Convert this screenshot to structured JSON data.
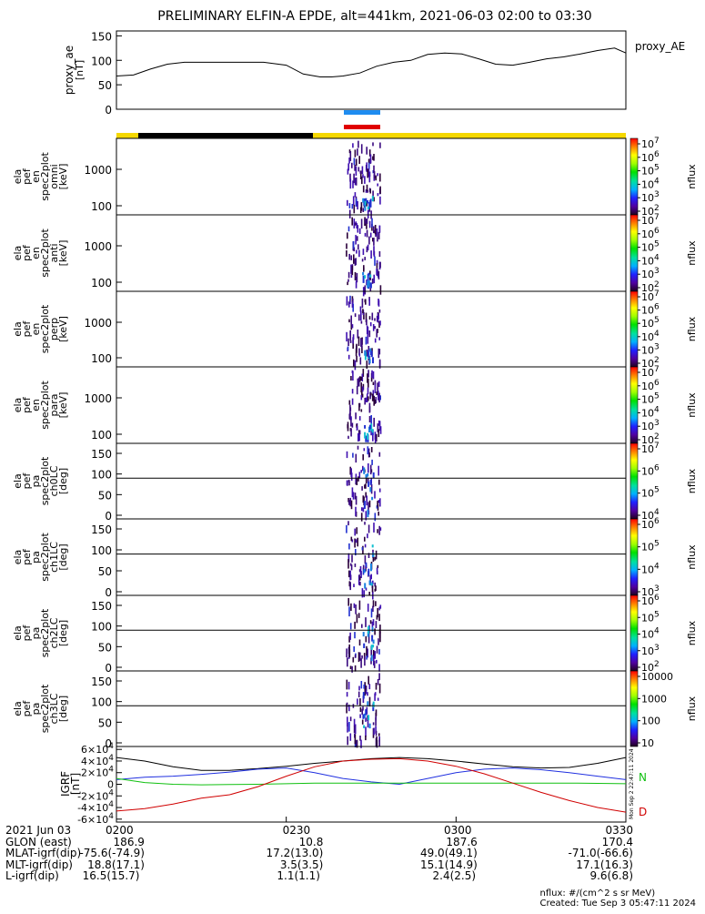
{
  "title": "PRELIMINARY ELFIN-A EPDE, alt=441km, 2021-06-03 02:00 to 03:30",
  "colors": {
    "yellow": "#f5d800",
    "black": "#000000",
    "blue_bar": "#1e8cf0",
    "red_bar": "#e00000",
    "series_black": "#000000",
    "series_blue": "#2030e0",
    "series_green": "#10c010",
    "series_red": "#d00000"
  },
  "time_axis": {
    "start": "0200",
    "end": "0330",
    "ticks": [
      "0200",
      "0230",
      "0300",
      "0330"
    ]
  },
  "chart_data": [
    {
      "type": "line",
      "name": "proxy_ae",
      "legend": "proxy_AE",
      "ylabel_lines": [
        "proxy_ae",
        "[nT]"
      ],
      "ylim": [
        0,
        160
      ],
      "yticks": [
        "0",
        "50",
        "100",
        "150"
      ],
      "x_minutes": [
        0,
        3,
        6,
        9,
        12,
        15,
        18,
        22,
        26,
        30,
        33,
        36,
        38,
        40,
        43,
        46,
        49,
        52,
        55,
        58,
        61,
        64,
        67,
        70,
        73,
        76,
        79,
        82,
        85,
        88,
        90
      ],
      "values": [
        68,
        70,
        82,
        92,
        96,
        96,
        96,
        96,
        96,
        90,
        72,
        66,
        66,
        68,
        74,
        88,
        96,
        100,
        112,
        115,
        113,
        103,
        92,
        90,
        96,
        103,
        107,
        113,
        120,
        125,
        115
      ]
    },
    {
      "type": "heatmap",
      "name": "ela_pef_en_spec2plot_omni",
      "ylabel_lines": [
        "ela",
        "pef",
        "en",
        "spec2plot",
        "omni",
        "[keV]"
      ],
      "yticks": [
        "100",
        "1000"
      ],
      "colorbar": {
        "label": "nflux",
        "ticks": [
          "10^2",
          "10^3",
          "10^4",
          "10^5",
          "10^6",
          "10^7"
        ]
      }
    },
    {
      "type": "heatmap",
      "name": "ela_pef_en_spec2plot_anti",
      "ylabel_lines": [
        "ela",
        "pef",
        "en",
        "spec2plot",
        "anti",
        "[keV]"
      ],
      "yticks": [
        "100",
        "1000"
      ],
      "colorbar": {
        "label": "nflux",
        "ticks": [
          "10^2",
          "10^3",
          "10^4",
          "10^5",
          "10^6",
          "10^7"
        ]
      }
    },
    {
      "type": "heatmap",
      "name": "ela_pef_en_spec2plot_perp",
      "ylabel_lines": [
        "ela",
        "pef",
        "en",
        "spec2plot",
        "perp",
        "[keV]"
      ],
      "yticks": [
        "100",
        "1000"
      ],
      "colorbar": {
        "label": "nflux",
        "ticks": [
          "10^2",
          "10^3",
          "10^4",
          "10^5",
          "10^6",
          "10^7"
        ]
      }
    },
    {
      "type": "heatmap",
      "name": "ela_pef_en_spec2plot_para",
      "ylabel_lines": [
        "ela",
        "pef",
        "en",
        "spec2plot",
        "para",
        "[keV]"
      ],
      "yticks": [
        "100",
        "1000"
      ],
      "colorbar": {
        "label": "nflux",
        "ticks": [
          "10^2",
          "10^3",
          "10^4",
          "10^5",
          "10^6",
          "10^7"
        ]
      }
    },
    {
      "type": "heatmap",
      "name": "ela_pef_pa_spec2plot_ch0LC",
      "ylabel_lines": [
        "ela",
        "pef",
        "pa",
        "spec2plot",
        "ch0LC",
        "[deg]"
      ],
      "yticks": [
        "0",
        "50",
        "100",
        "150"
      ],
      "colorbar": {
        "label": "nflux",
        "ticks": [
          "10^4",
          "10^5",
          "10^6",
          "10^7"
        ]
      }
    },
    {
      "type": "heatmap",
      "name": "ela_pef_pa_spec2plot_ch1LC",
      "ylabel_lines": [
        "ela",
        "pef",
        "pa",
        "spec2plot",
        "ch1LC",
        "[deg]"
      ],
      "yticks": [
        "0",
        "50",
        "100",
        "150"
      ],
      "colorbar": {
        "label": "nflux",
        "ticks": [
          "10^3",
          "10^4",
          "10^5",
          "10^6"
        ]
      }
    },
    {
      "type": "heatmap",
      "name": "ela_pef_pa_spec2plot_ch2LC",
      "ylabel_lines": [
        "ela",
        "pef",
        "pa",
        "spec2plot",
        "ch2LC",
        "[deg]"
      ],
      "yticks": [
        "0",
        "50",
        "100",
        "150"
      ],
      "colorbar": {
        "label": "nflux",
        "ticks": [
          "10^2",
          "10^3",
          "10^4",
          "10^5",
          "10^6"
        ]
      }
    },
    {
      "type": "heatmap",
      "name": "ela_pef_pa_spec2plot_ch3LC",
      "ylabel_lines": [
        "ela",
        "pef",
        "pa",
        "spec2plot",
        "ch3LC",
        "[deg]"
      ],
      "yticks": [
        "0",
        "50",
        "100",
        "150"
      ],
      "colorbar": {
        "label": "nflux",
        "ticks": [
          "10",
          "100",
          "1000",
          "10000"
        ]
      }
    },
    {
      "type": "line",
      "name": "IGRF",
      "ylabel_lines": [
        "IGRF",
        "[nT]"
      ],
      "ylim": [
        -65000,
        65000
      ],
      "yticks": [
        "-6×10^4",
        "-4×10^4",
        "-2×10^4",
        "0",
        "2×10^4",
        "4×10^4",
        "6×10^4"
      ],
      "series_labels": [
        "N",
        "D"
      ],
      "x_minutes": [
        0,
        5,
        10,
        15,
        20,
        25,
        30,
        35,
        40,
        45,
        50,
        55,
        60,
        65,
        70,
        75,
        80,
        85,
        90
      ],
      "series": [
        {
          "color": "black",
          "values": [
            46000,
            40000,
            30000,
            24000,
            24000,
            27000,
            31000,
            36000,
            40000,
            44000,
            46000,
            44000,
            40000,
            35000,
            30000,
            28000,
            29000,
            36000,
            46000
          ]
        },
        {
          "color": "blue",
          "values": [
            8000,
            12000,
            14000,
            17000,
            21000,
            26000,
            28000,
            20000,
            10000,
            4000,
            0,
            10000,
            20000,
            26000,
            28000,
            25000,
            20000,
            14000,
            8000
          ]
        },
        {
          "color": "green",
          "values": [
            10000,
            3000,
            0,
            -1000,
            -500,
            0,
            1000,
            2000,
            2000,
            2000,
            2000,
            2000,
            2000,
            2000,
            2000,
            2000,
            2000,
            1500,
            1000
          ]
        },
        {
          "color": "red",
          "values": [
            -46000,
            -42000,
            -34000,
            -24000,
            -18000,
            -4000,
            14000,
            30000,
            40000,
            43000,
            44000,
            40000,
            31000,
            18000,
            2000,
            -14000,
            -28000,
            -40000,
            -48000
          ]
        }
      ]
    }
  ],
  "date_label": "2021 Jun 03",
  "footer_rows": [
    {
      "label": "GLON (east)",
      "values": [
        "186.9",
        "10.8",
        "187.6",
        "170.4"
      ]
    },
    {
      "label": "MLAT-igrf(dip)",
      "values": [
        "-75.6(-74.9)",
        "17.2(13.0)",
        "49.0(49.1)",
        "-71.0(-66.6)"
      ]
    },
    {
      "label": "MLT-igrf(dip)",
      "values": [
        "18.8(17.1)",
        "3.5(3.5)",
        "15.1(14.9)",
        "17.1(16.3)"
      ]
    },
    {
      "label": "L-igrf(dip)",
      "values": [
        "16.5(15.7)",
        "1.1(1.1)",
        "2.4(2.5)",
        "9.6(6.8)"
      ]
    }
  ],
  "side_stamp": "Mon Sep 2 22:47:11 2024",
  "credits": {
    "units": "nflux: #/(cm^2 s sr MeV)",
    "created": "Created: Tue Sep  3 05:47:11 2024"
  }
}
